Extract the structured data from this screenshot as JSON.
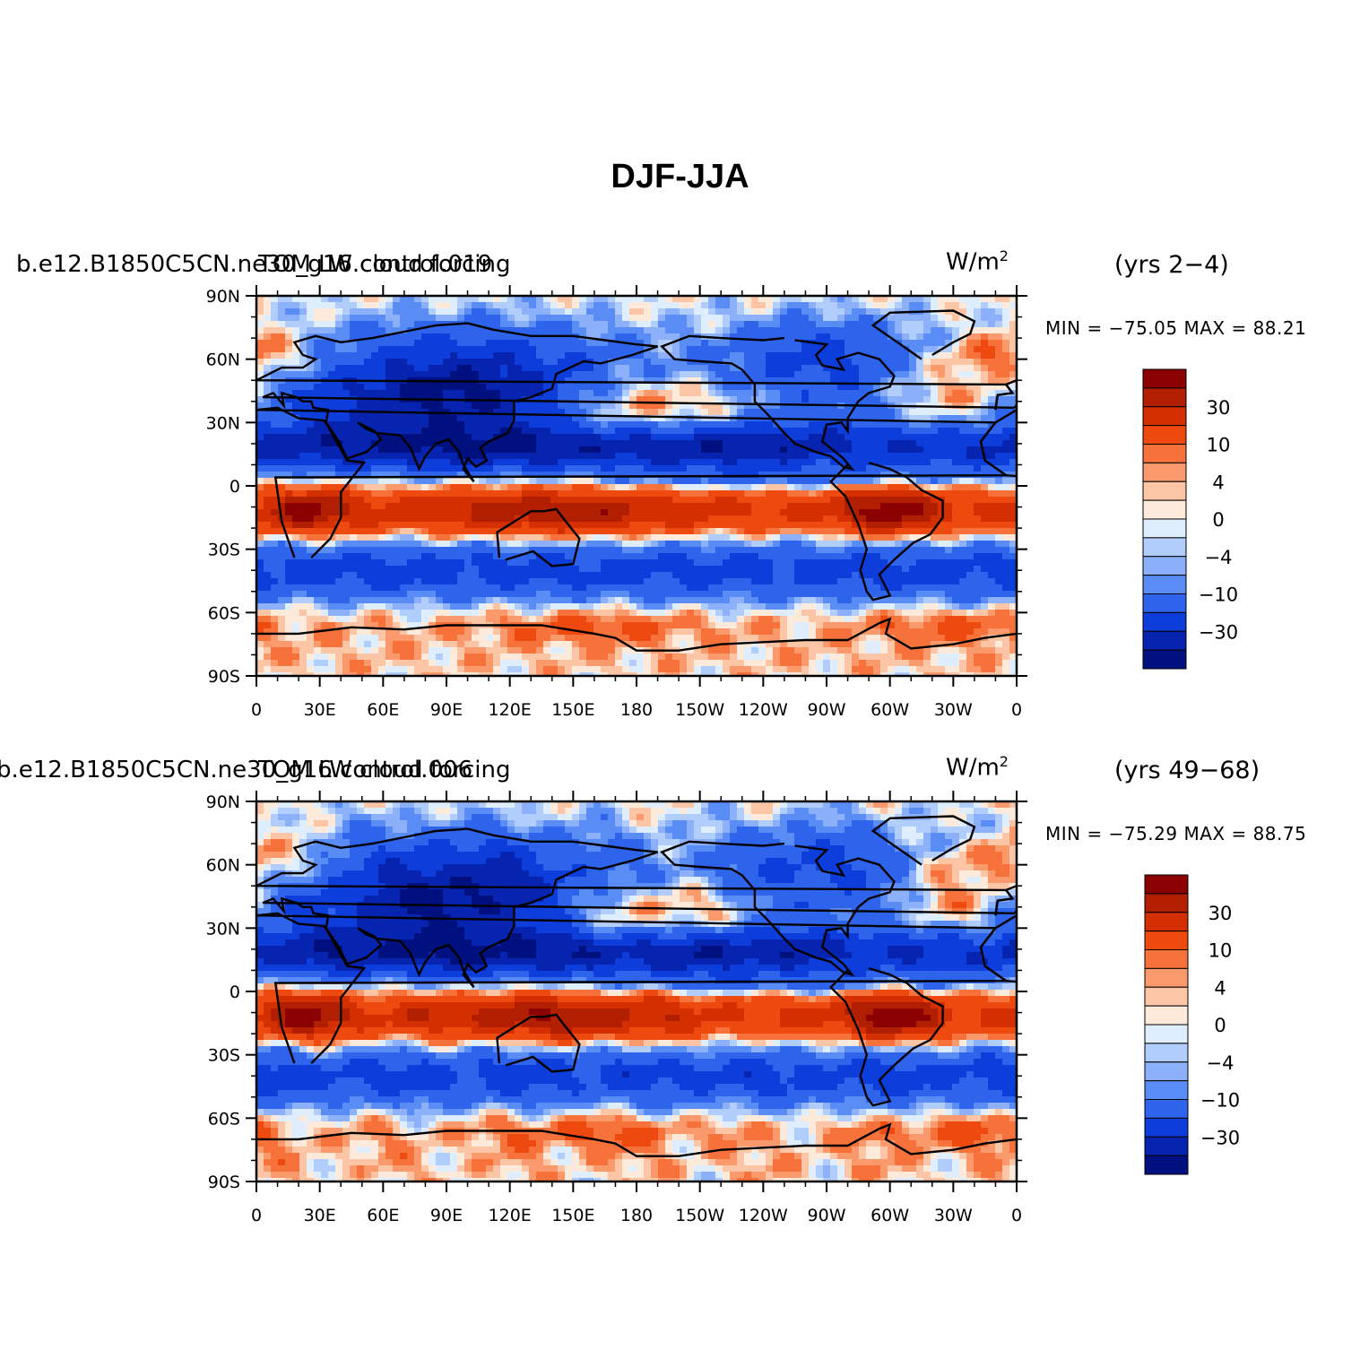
{
  "title": "DJF-JJA",
  "panels": [
    {
      "case": "b.e12.B1850C5CN.ne30_g16.control.019",
      "field": "TOM LW cloud forcing",
      "units": "W/m",
      "units_sup": "2",
      "years": "(yrs  2−4)",
      "minmax": "MIN  =  −75.05  MAX  =    88.21",
      "min": -75.05,
      "max": 88.21
    },
    {
      "case": "b.e12.B1850C5CN.ne30_g16.control.006",
      "field": "TOM LW cloud forcing",
      "units": "W/m",
      "units_sup": "2",
      "years": "(yrs  49−68)",
      "minmax": "MIN  =  −75.29  MAX  =    88.75",
      "min": -75.29,
      "max": 88.75
    }
  ],
  "lat_ticks": [
    "90N",
    "60N",
    "30N",
    "0",
    "30S",
    "60S",
    "90S"
  ],
  "lon_ticks": [
    "0",
    "30E",
    "60E",
    "90E",
    "120E",
    "150E",
    "180",
    "150W",
    "120W",
    "90W",
    "60W",
    "30W",
    "0"
  ],
  "colorbar": {
    "labels": [
      "30",
      "10",
      "4",
      "0",
      "−4",
      "−10",
      "−30"
    ],
    "colors": [
      "#8b0000",
      "#b21e00",
      "#d32f00",
      "#ee4a10",
      "#f7723a",
      "#fa9a6c",
      "#fcc5a5",
      "#feeadb",
      "#dfeefe",
      "#b1cdfc",
      "#8cb1fa",
      "#5a8cf5",
      "#2e63ec",
      "#0d3ddb",
      "#0624b0",
      "#00117f"
    ]
  }
}
